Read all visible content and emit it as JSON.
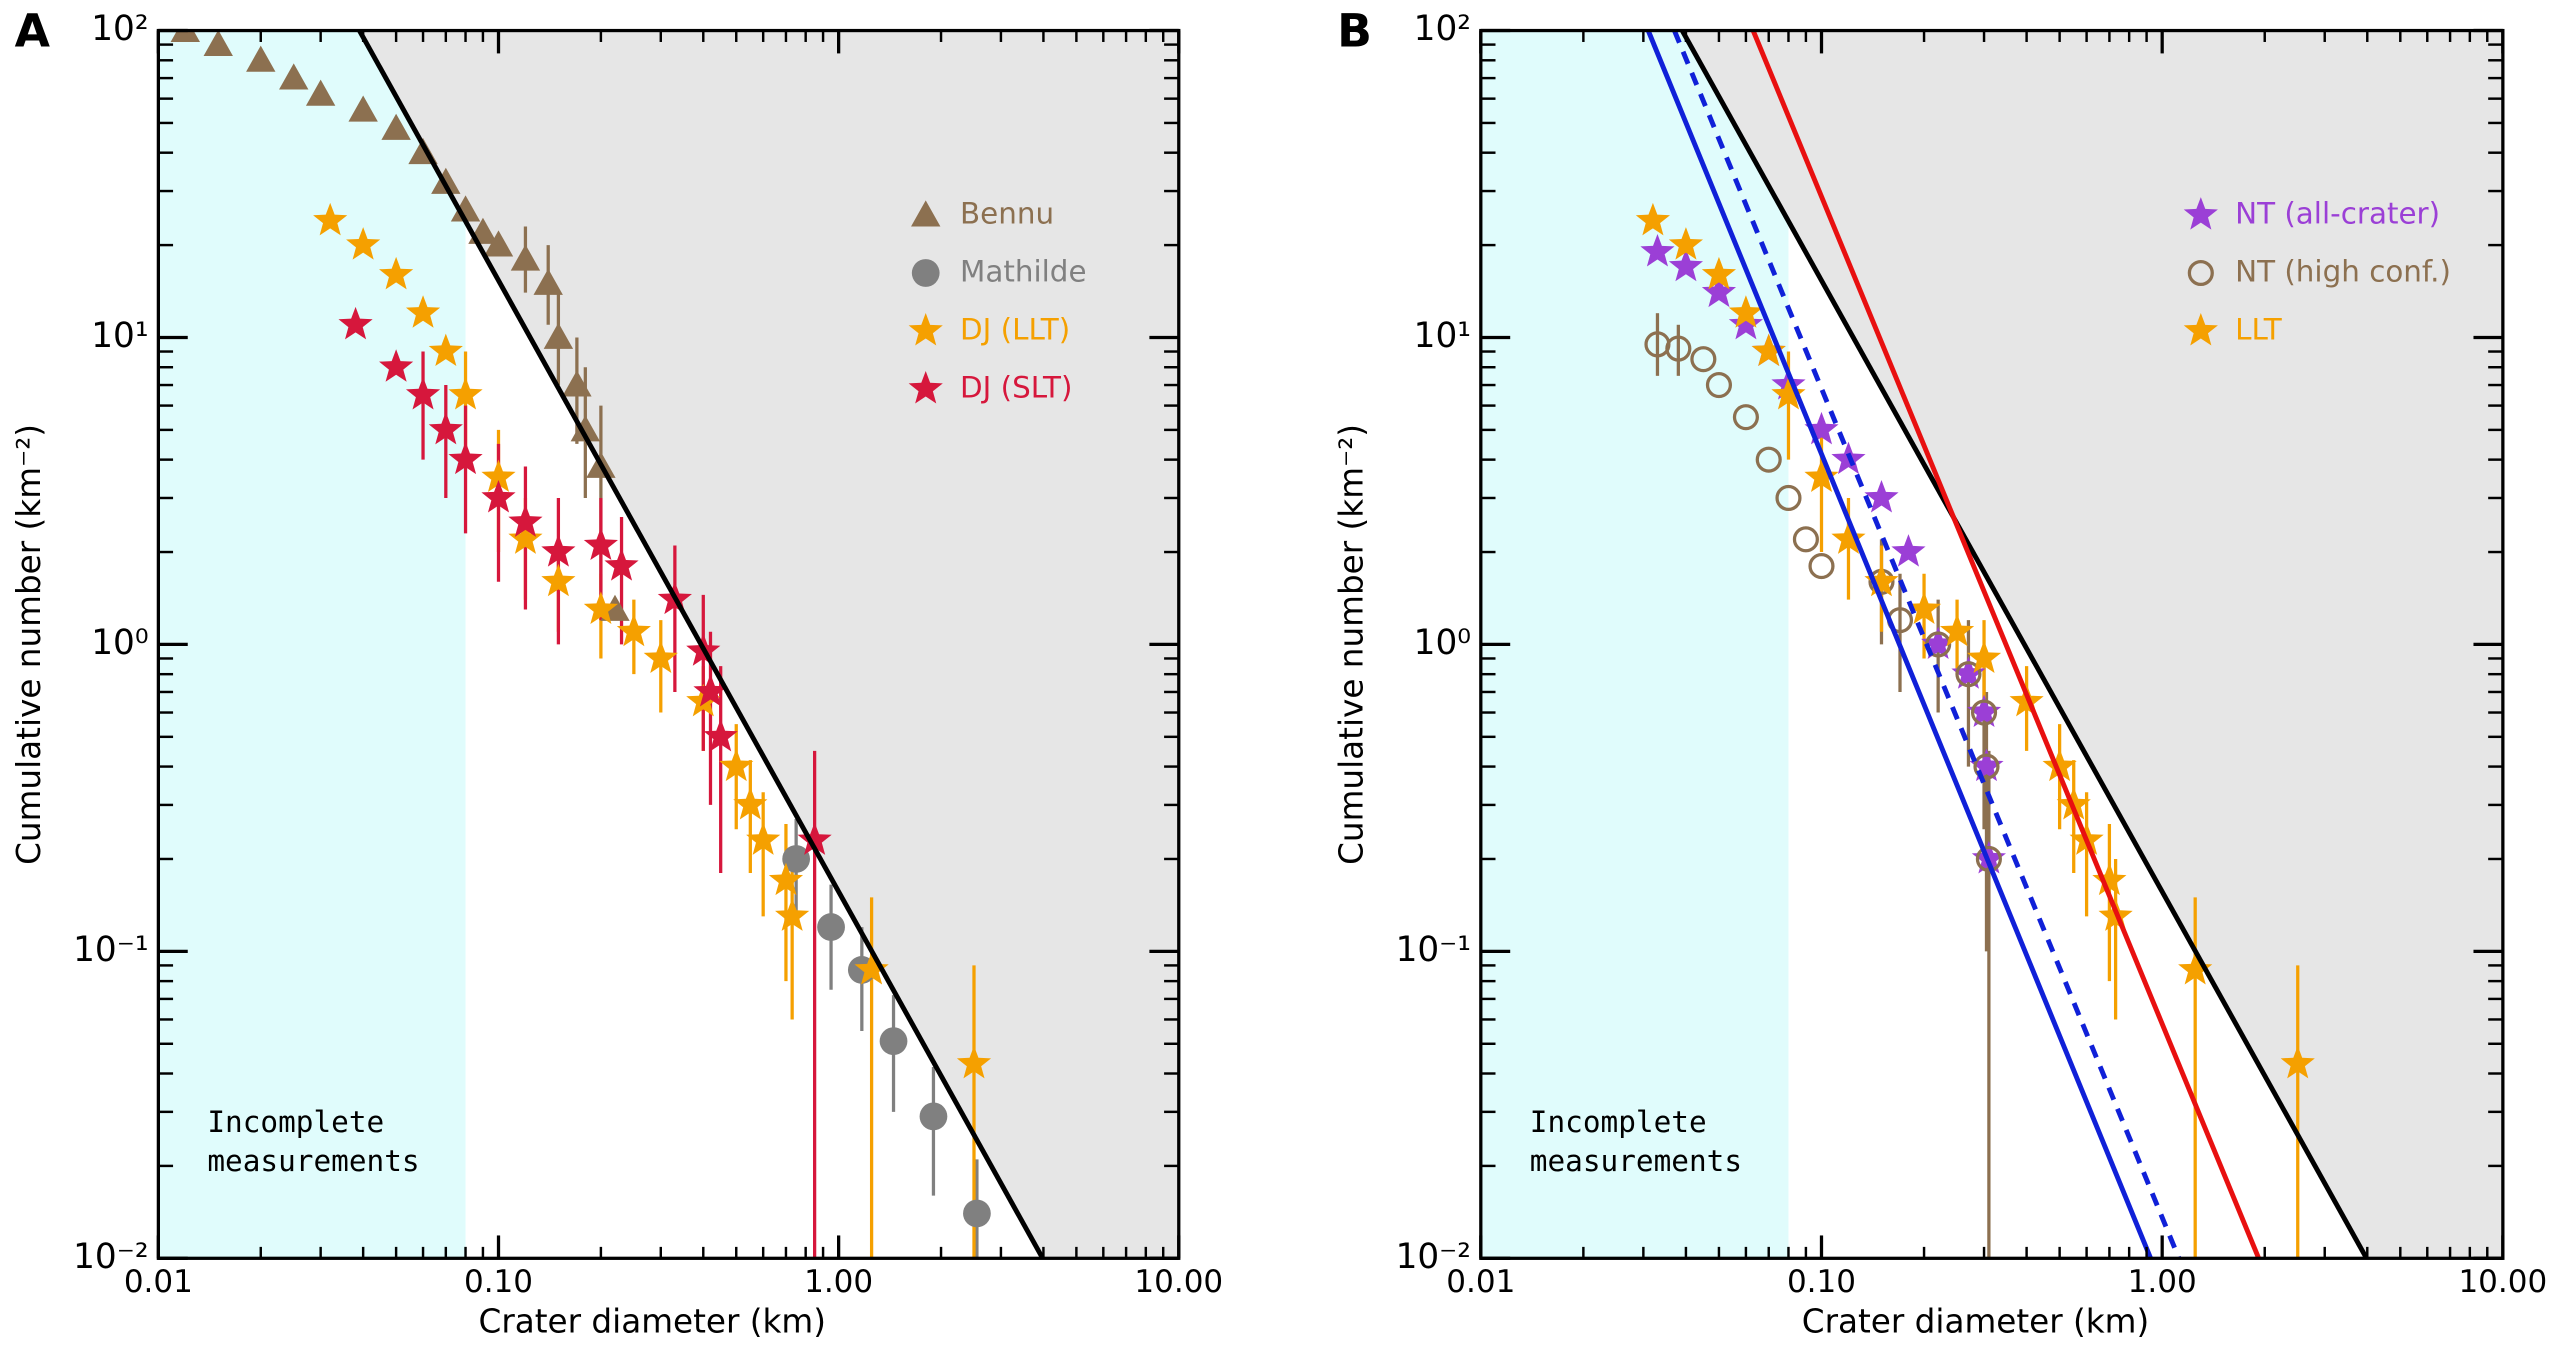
{
  "chart_data": [
    {
      "type": "scatter",
      "panel": "A",
      "xlabel": "Crater diameter (km)",
      "ylabel": "Cumulative number (km⁻²)",
      "log_x": true,
      "log_y": true,
      "xlim": [
        0.01,
        10
      ],
      "ylim": [
        0.01,
        100
      ],
      "xticks": [
        0.01,
        {
          "value": 0.1,
          "label": "0.10"
        },
        {
          "value": 1,
          "label": "1.00"
        },
        {
          "value": 10,
          "label": "10.00"
        }
      ],
      "yticks": [
        {
          "value": 0.01,
          "label": "10⁻²"
        },
        {
          "value": 0.1,
          "label": "10⁻¹"
        },
        {
          "value": 1,
          "label": "10⁰"
        },
        {
          "value": 10,
          "label": "10¹"
        },
        {
          "value": 100,
          "label": "10²"
        }
      ],
      "incomplete_region": {
        "x": [
          0.01,
          0.08
        ],
        "color": "#e0fcfc",
        "label": [
          "Incomplete",
          "measurements"
        ]
      },
      "shade_above_line": {
        "line": 0,
        "color": "#e6e6e6"
      },
      "lines": [
        {
          "color": "#000000",
          "dashed": false,
          "x": [
            0.039,
            3.98
          ],
          "y": [
            100,
            0.01
          ]
        }
      ],
      "series": [
        {
          "name": "Bennu",
          "color": "#8c7050",
          "marker": "triangle",
          "x": [
            0.012,
            0.015,
            0.02,
            0.025,
            0.03,
            0.04,
            0.05,
            0.06,
            0.07,
            0.08,
            0.09,
            0.1,
            0.12,
            0.14,
            0.15,
            0.17,
            0.18,
            0.2,
            0.22
          ],
          "y": [
            100,
            90,
            80,
            70,
            62,
            55,
            48,
            40,
            32,
            26,
            22,
            20,
            18,
            15,
            10,
            7,
            5,
            3.8,
            1.3
          ],
          "ylo": [
            null,
            null,
            null,
            null,
            null,
            null,
            null,
            null,
            null,
            null,
            null,
            null,
            14,
            11,
            7,
            4.5,
            3,
            1.5,
            null
          ],
          "yhi": [
            null,
            null,
            null,
            null,
            null,
            null,
            null,
            null,
            null,
            null,
            null,
            null,
            23,
            20,
            14,
            10,
            8,
            6,
            null
          ]
        },
        {
          "name": "Mathilde",
          "color": "#808080",
          "marker": "circle",
          "x": [
            0.75,
            0.95,
            1.17,
            1.45,
            1.9,
            2.55
          ],
          "y": [
            0.2,
            0.12,
            0.087,
            0.051,
            0.029,
            0.014
          ],
          "ylo": [
            0.13,
            0.075,
            0.055,
            0.03,
            0.016,
            0.007
          ],
          "yhi": [
            0.27,
            0.165,
            0.12,
            0.072,
            0.042,
            0.021
          ]
        },
        {
          "name": "DJ (LLT)",
          "color": "#f5a000",
          "marker": "star",
          "x": [
            0.032,
            0.04,
            0.05,
            0.06,
            0.07,
            0.08,
            0.1,
            0.12,
            0.15,
            0.2,
            0.25,
            0.3,
            0.4,
            0.5,
            0.55,
            0.6,
            0.7,
            0.73,
            1.25,
            2.5
          ],
          "y": [
            24,
            20,
            16,
            12,
            9,
            6.5,
            3.5,
            2.2,
            1.6,
            1.3,
            1.1,
            0.9,
            0.65,
            0.4,
            0.3,
            0.23,
            0.17,
            0.13,
            0.087,
            0.043
          ],
          "ylo": [
            null,
            null,
            null,
            null,
            null,
            4,
            2,
            1.4,
            1.1,
            0.9,
            0.8,
            0.6,
            0.45,
            0.25,
            0.18,
            0.13,
            0.08,
            0.06,
            0.01,
            0.01
          ],
          "yhi": [
            null,
            null,
            null,
            null,
            null,
            9,
            5,
            3,
            2.1,
            1.7,
            1.4,
            1.2,
            0.85,
            0.55,
            0.42,
            0.33,
            0.26,
            0.2,
            0.15,
            0.09
          ]
        },
        {
          "name": "DJ (SLT)",
          "color": "#d6173c",
          "marker": "star",
          "x": [
            0.038,
            0.05,
            0.06,
            0.07,
            0.08,
            0.1,
            0.12,
            0.15,
            0.2,
            0.23,
            0.33,
            0.4,
            0.42,
            0.45,
            0.85
          ],
          "y": [
            11,
            8,
            6.5,
            5,
            4,
            3,
            2.5,
            2,
            2.1,
            1.8,
            1.4,
            0.95,
            0.7,
            0.5,
            0.23
          ],
          "ylo": [
            null,
            null,
            4,
            3,
            2.3,
            1.6,
            1.3,
            1,
            1.2,
            1,
            0.7,
            0.45,
            0.3,
            0.18,
            0.01
          ],
          "yhi": [
            null,
            null,
            9,
            7,
            6,
            4.5,
            3.8,
            3,
            3,
            2.6,
            2.1,
            1.45,
            1.1,
            0.85,
            0.45
          ]
        }
      ],
      "legend_corner": "upper right"
    },
    {
      "type": "scatter",
      "panel": "B",
      "xlabel": "Crater diameter (km)",
      "ylabel": "Cumulative number (km⁻²)",
      "log_x": true,
      "log_y": true,
      "xlim": [
        0.01,
        10
      ],
      "ylim": [
        0.01,
        100
      ],
      "xticks": [
        0.01,
        {
          "value": 0.1,
          "label": "0.10"
        },
        {
          "value": 1,
          "label": "1.00"
        },
        {
          "value": 10,
          "label": "10.00"
        }
      ],
      "yticks": [
        {
          "value": 0.01,
          "label": "10⁻²"
        },
        {
          "value": 0.1,
          "label": "10⁻¹"
        },
        {
          "value": 1,
          "label": "10⁰"
        },
        {
          "value": 10,
          "label": "10¹"
        },
        {
          "value": 100,
          "label": "10²"
        }
      ],
      "incomplete_region": {
        "x": [
          0.01,
          0.08
        ],
        "color": "#e0fcfc",
        "label": [
          "Incomplete",
          "measurements"
        ]
      },
      "shade_above_line": {
        "line": 0,
        "color": "#e6e6e6"
      },
      "lines": [
        {
          "color": "#000000",
          "dashed": false,
          "x": [
            0.039,
            3.98
          ],
          "y": [
            100,
            0.01
          ]
        },
        {
          "color": "#e81010",
          "dashed": false,
          "x": [
            0.063,
            1.92
          ],
          "y": [
            100,
            0.01
          ]
        },
        {
          "color": "#1020d8",
          "dashed": false,
          "x": [
            0.031,
            0.925
          ],
          "y": [
            100,
            0.01
          ]
        },
        {
          "color": "#1020d8",
          "dashed": true,
          "x": [
            0.037,
            1.12
          ],
          "y": [
            100,
            0.01
          ]
        }
      ],
      "series": [
        {
          "name": "NT (all-crater)",
          "color": "#9b3fd6",
          "marker": "star",
          "x": [
            0.033,
            0.04,
            0.05,
            0.06,
            0.07,
            0.08,
            0.1,
            0.12,
            0.15,
            0.18,
            0.22,
            0.27,
            0.3,
            0.305,
            0.31
          ],
          "y": [
            19,
            17,
            14,
            11,
            9,
            7,
            5,
            4,
            3,
            2,
            1,
            0.8,
            0.6,
            0.4,
            0.2
          ],
          "ylo": [
            null,
            null,
            null,
            null,
            null,
            null,
            null,
            null,
            null,
            null,
            null,
            null,
            null,
            null,
            null
          ],
          "yhi": [
            null,
            null,
            null,
            null,
            null,
            null,
            null,
            null,
            null,
            null,
            null,
            null,
            null,
            null,
            null
          ]
        },
        {
          "name": "NT (high conf.)",
          "color": "#8c7050",
          "marker": "open-circle",
          "x": [
            0.033,
            0.038,
            0.045,
            0.05,
            0.06,
            0.07,
            0.08,
            0.09,
            0.1,
            0.15,
            0.17,
            0.22,
            0.27,
            0.3,
            0.305,
            0.31
          ],
          "y": [
            9.5,
            9.2,
            8.5,
            7,
            5.5,
            4,
            3,
            2.2,
            1.8,
            1.6,
            1.2,
            1,
            0.8,
            0.6,
            0.4,
            0.2
          ],
          "ylo": [
            7.5,
            7.5,
            null,
            null,
            null,
            null,
            null,
            null,
            null,
            1,
            0.7,
            0.6,
            0.4,
            0.25,
            0.1,
            0.01
          ],
          "yhi": [
            12,
            11,
            null,
            null,
            null,
            null,
            null,
            null,
            null,
            2.2,
            1.7,
            1.4,
            1.2,
            0.95,
            0.7,
            0.45
          ]
        },
        {
          "name": "LLT",
          "color": "#f5a000",
          "marker": "star",
          "x": [
            0.032,
            0.04,
            0.05,
            0.06,
            0.07,
            0.08,
            0.1,
            0.12,
            0.15,
            0.2,
            0.25,
            0.3,
            0.4,
            0.5,
            0.55,
            0.6,
            0.7,
            0.73,
            1.25,
            2.5
          ],
          "y": [
            24,
            20,
            16,
            12,
            9,
            6.5,
            3.5,
            2.2,
            1.6,
            1.3,
            1.1,
            0.9,
            0.65,
            0.4,
            0.3,
            0.23,
            0.17,
            0.13,
            0.087,
            0.043
          ],
          "ylo": [
            null,
            null,
            null,
            null,
            null,
            4,
            2,
            1.4,
            1.1,
            0.9,
            0.8,
            0.6,
            0.45,
            0.25,
            0.18,
            0.13,
            0.08,
            0.06,
            0.01,
            0.01
          ],
          "yhi": [
            null,
            null,
            null,
            null,
            null,
            9,
            5,
            3,
            2.1,
            1.7,
            1.4,
            1.2,
            0.85,
            0.55,
            0.42,
            0.33,
            0.26,
            0.2,
            0.15,
            0.09
          ]
        }
      ],
      "legend_corner": "upper right"
    }
  ]
}
